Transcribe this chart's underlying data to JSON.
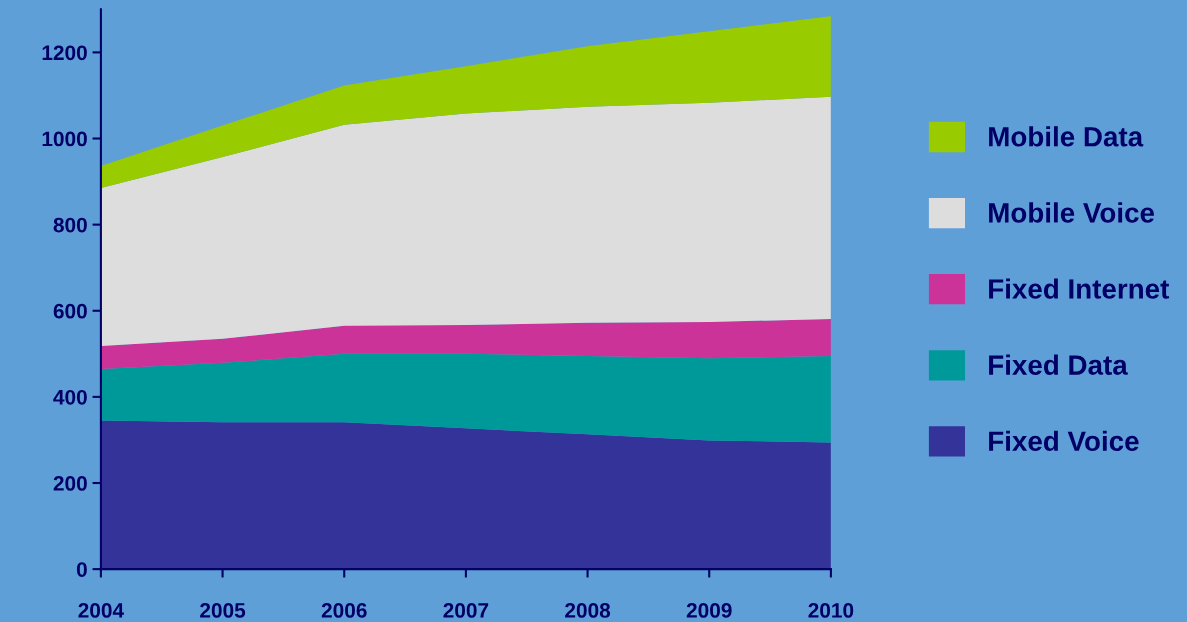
{
  "chart_data": {
    "type": "area",
    "stacked": true,
    "categories": [
      "2004",
      "2005",
      "2006",
      "2007",
      "2008",
      "2009",
      "2010"
    ],
    "series": [
      {
        "name": "Fixed Voice",
        "color": "#333399",
        "values": [
          345,
          341,
          341,
          327,
          313,
          299,
          294
        ]
      },
      {
        "name": "Fixed Data",
        "color": "#009999",
        "values": [
          120,
          138,
          159,
          173,
          182,
          191,
          201
        ]
      },
      {
        "name": "Fixed Internet",
        "color": "#cc3399",
        "values": [
          53,
          56,
          65,
          67,
          77,
          84,
          86
        ]
      },
      {
        "name": "Mobile Voice",
        "color": "#dddddd",
        "values": [
          367,
          422,
          467,
          491,
          502,
          509,
          516
        ]
      },
      {
        "name": "Mobile Data",
        "color": "#99cc00",
        "values": [
          51,
          73,
          91,
          110,
          140,
          166,
          187
        ]
      }
    ],
    "ylim": [
      0,
      1300
    ],
    "yticks": [
      0,
      200,
      400,
      600,
      800,
      1000,
      1200
    ],
    "grid": false,
    "legend": "right"
  }
}
